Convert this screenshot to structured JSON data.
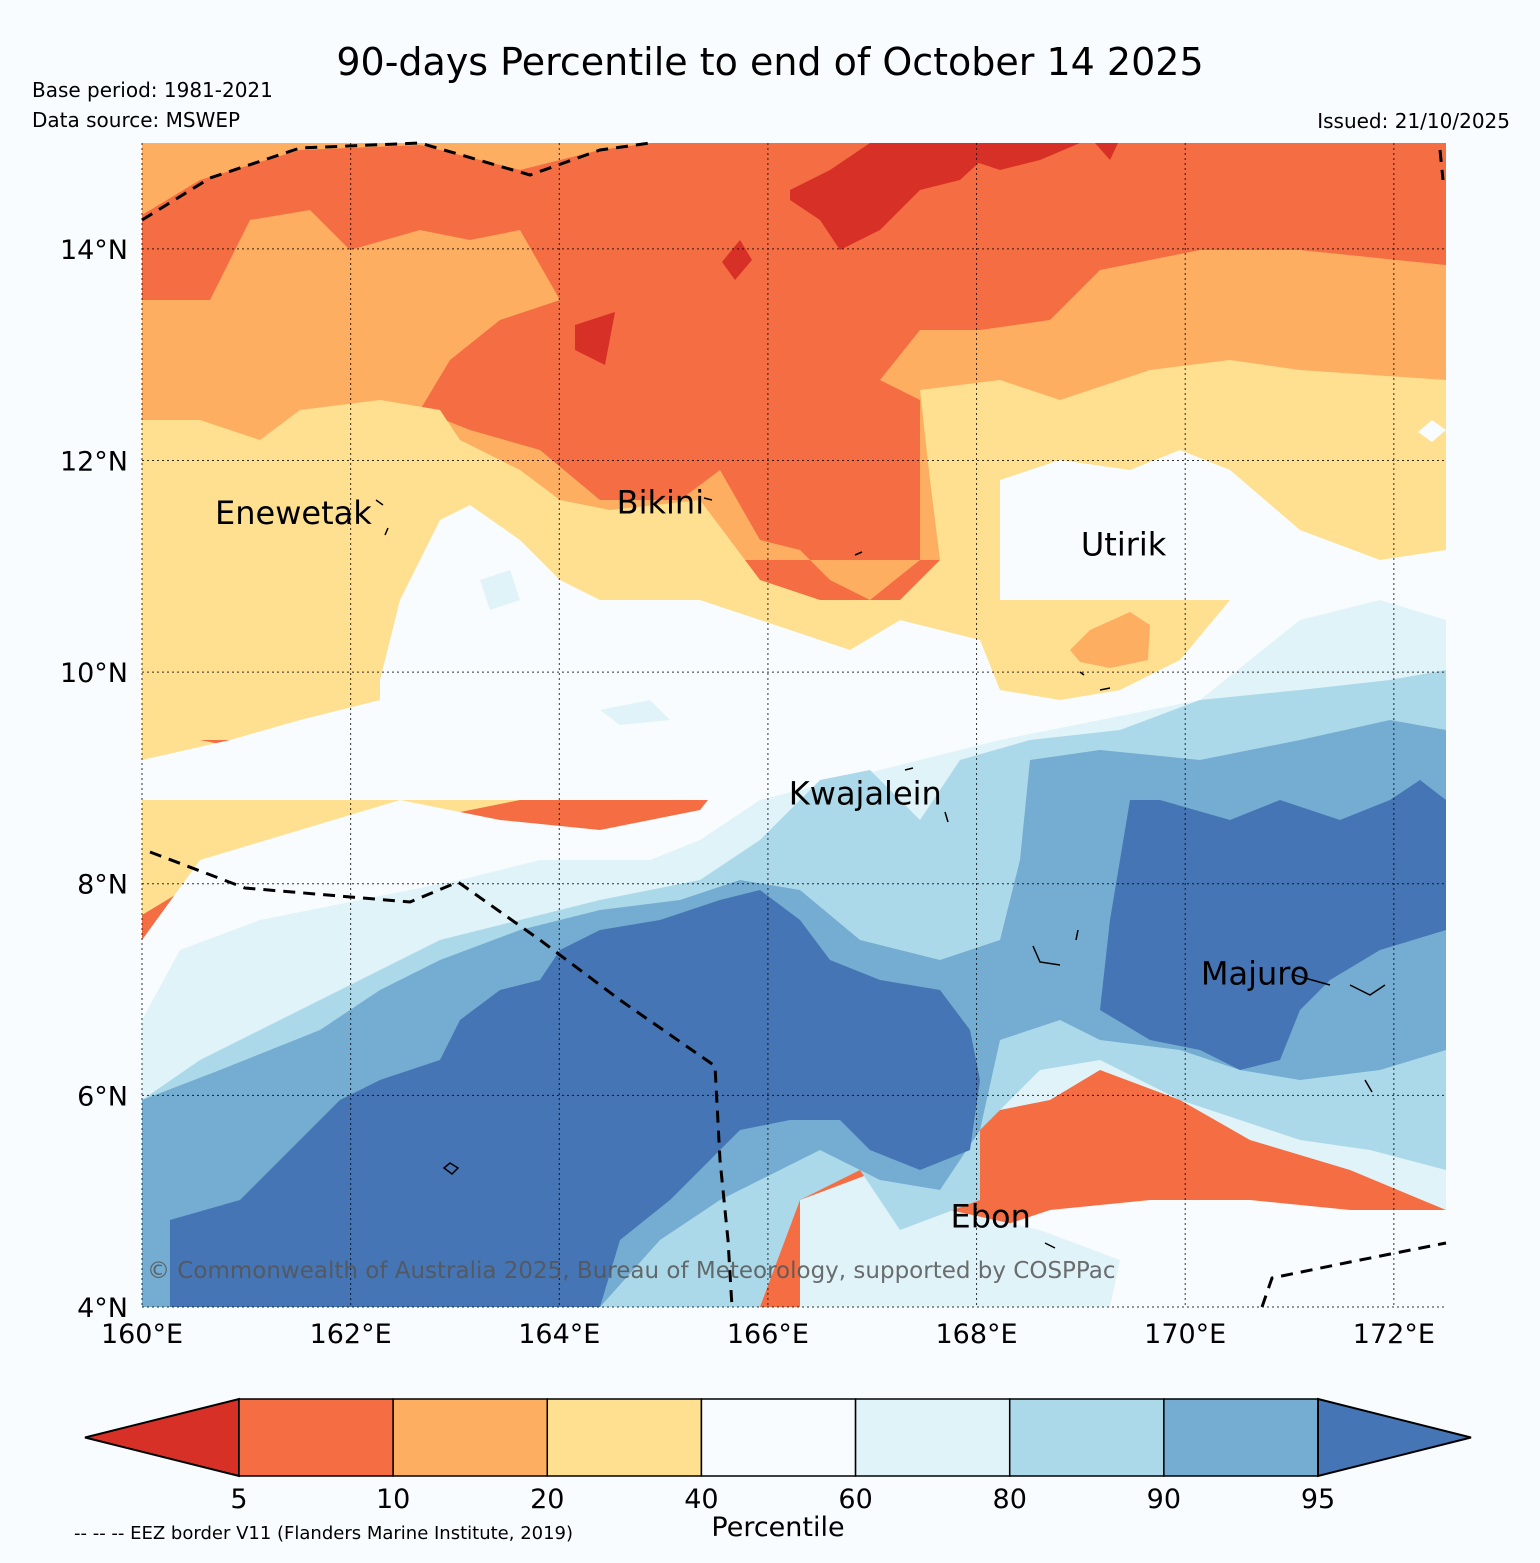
{
  "header": {
    "title": "90-days Percentile to end of October 14 2025",
    "base_period": "Base period: 1981-2021",
    "data_source": "Data source: MSWEP",
    "issued": "Issued: 21/10/2025"
  },
  "map": {
    "lon_range": [
      160,
      172.5
    ],
    "lat_range": [
      4,
      15
    ],
    "lon_ticks": [
      "160°E",
      "162°E",
      "164°E",
      "166°E",
      "168°E",
      "170°E",
      "172°E"
    ],
    "lat_ticks": [
      "14°N",
      "12°N",
      "10°N",
      "8°N",
      "6°N",
      "4°N"
    ],
    "places": [
      {
        "name": "Enewetak",
        "lon": 160.7,
        "lat": 11.4
      },
      {
        "name": "Bikini",
        "lon": 164.55,
        "lat": 11.5
      },
      {
        "name": "Utirik",
        "lon": 169.0,
        "lat": 11.1
      },
      {
        "name": "Kwajalein",
        "lon": 166.2,
        "lat": 8.75
      },
      {
        "name": "Majuro",
        "lon": 170.15,
        "lat": 7.05
      },
      {
        "name": "Ebon",
        "lon": 167.75,
        "lat": 4.75
      }
    ],
    "credit": "© Commonwealth of Australia 2025, Bureau of Meteorology, supported by COSPPac"
  },
  "colorbar": {
    "title": "Percentile",
    "tick_labels": [
      "5",
      "10",
      "20",
      "40",
      "60",
      "80",
      "90",
      "95"
    ],
    "colors": {
      "lt5": "#d73027",
      "p5_10": "#f46d43",
      "p10_20": "#fdae61",
      "p20_40": "#fee090",
      "p40_60": "#f8fcfe",
      "p60_80": "#e0f3f8",
      "p80_90": "#abd9e9",
      "p90_95": "#74add1",
      "gt95": "#4575b4"
    },
    "eez_note": "-- -- -- EEZ border V11 (Flanders Marine Institute, 2019)"
  }
}
